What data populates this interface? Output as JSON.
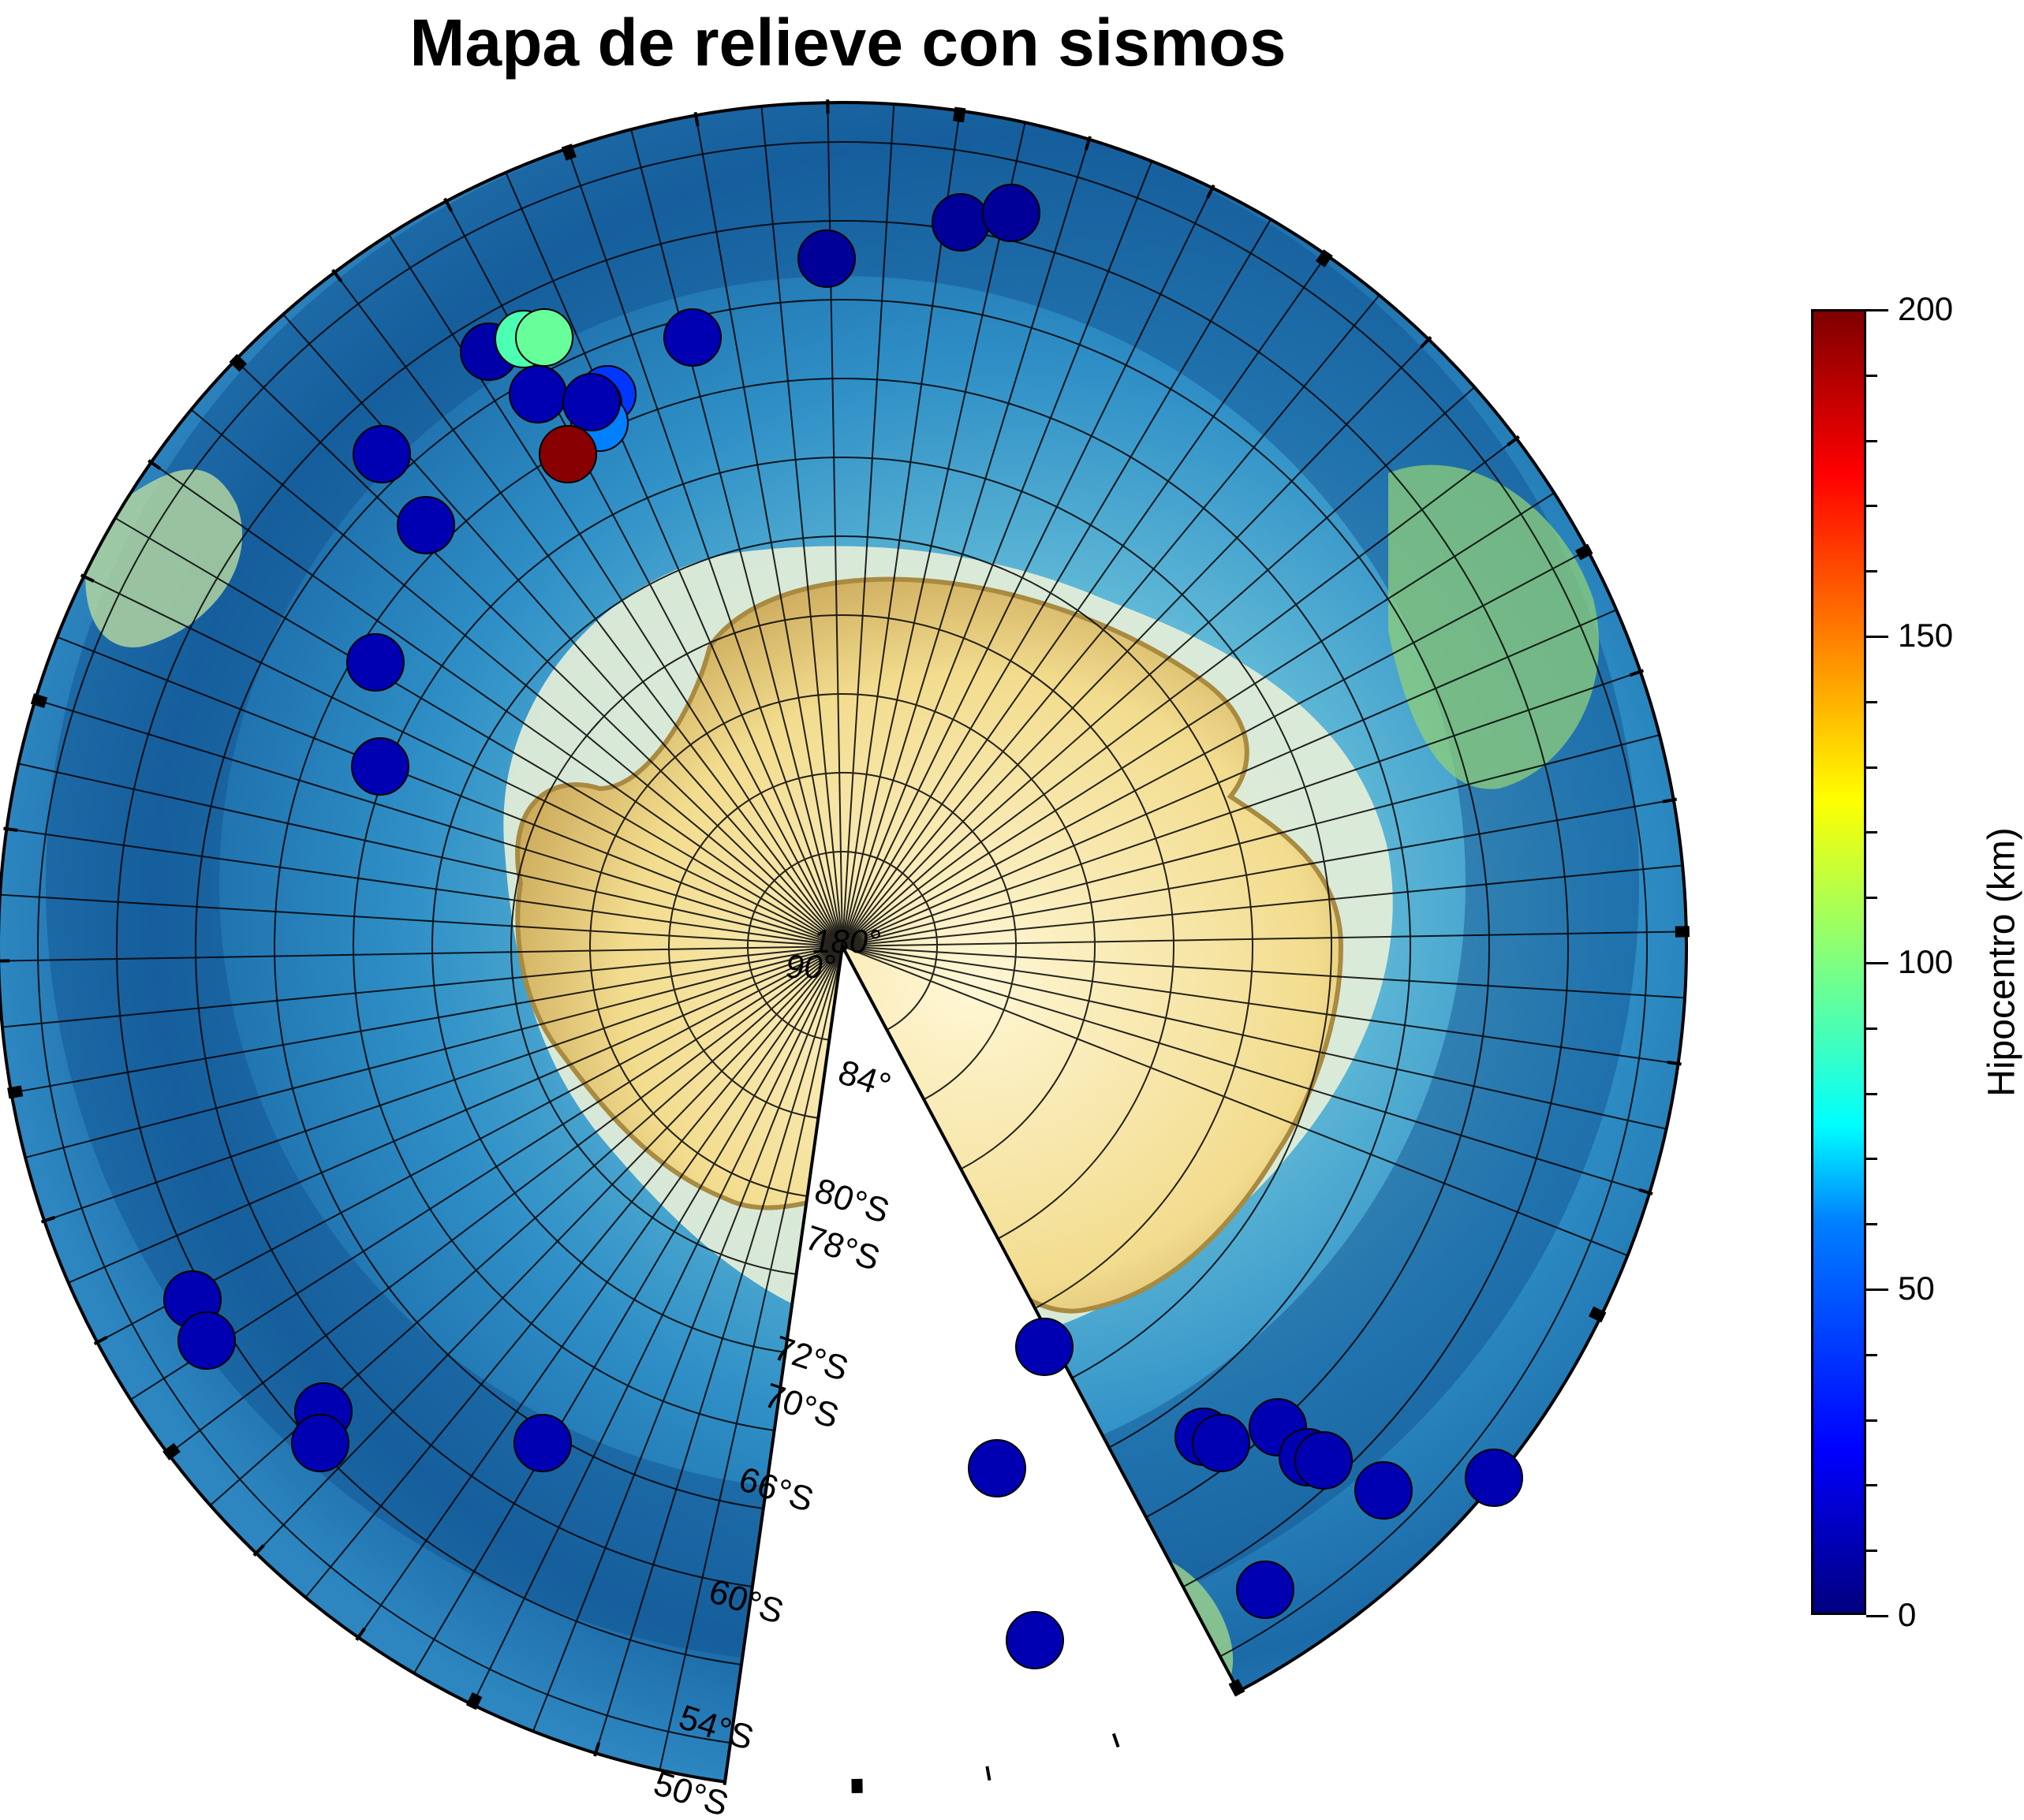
{
  "map": {
    "title": "Mapa de relieve con sismos",
    "center_labels": [
      "180°",
      "90°"
    ],
    "latitude_labels": [
      "84°",
      "80°S",
      "78°S",
      "72°S",
      "70°S",
      "66°S",
      "60°S",
      "54°S",
      "50°S"
    ],
    "colors": {
      "ocean_deep": "#0b3d7a",
      "ocean_mid": "#1f7fb8",
      "shelf": "#7fd1c9",
      "land_low": "#9bd47a",
      "ice": "#f5e6a3",
      "ice_edge": "#c9a657"
    }
  },
  "earthquakes": [
    {
      "depth_km": 5
    },
    {
      "depth_km": 5
    },
    {
      "depth_km": 5
    },
    {
      "depth_km": 8
    },
    {
      "depth_km": 10
    },
    {
      "depth_km": 10
    },
    {
      "depth_km": 10
    },
    {
      "depth_km": 10
    },
    {
      "depth_km": 10
    },
    {
      "depth_km": 10
    },
    {
      "depth_km": 40
    },
    {
      "depth_km": 55
    },
    {
      "depth_km": 60
    },
    {
      "depth_km": 90
    },
    {
      "depth_km": 95
    },
    {
      "depth_km": 198
    },
    {
      "depth_km": 10
    },
    {
      "depth_km": 10
    },
    {
      "depth_km": 10
    },
    {
      "depth_km": 10
    },
    {
      "depth_km": 10
    },
    {
      "depth_km": 10
    },
    {
      "depth_km": 10
    },
    {
      "depth_km": 10
    },
    {
      "depth_km": 10
    },
    {
      "depth_km": 10
    },
    {
      "depth_km": 10
    },
    {
      "depth_km": 10
    },
    {
      "depth_km": 10
    },
    {
      "depth_km": 10
    },
    {
      "depth_km": 10
    },
    {
      "depth_km": 10
    },
    {
      "depth_km": 10
    }
  ],
  "colorbar": {
    "title": "Hipocentro (km)",
    "ticks": [
      "0",
      "50",
      "100",
      "150",
      "200"
    ],
    "range": [
      0,
      200
    ]
  }
}
